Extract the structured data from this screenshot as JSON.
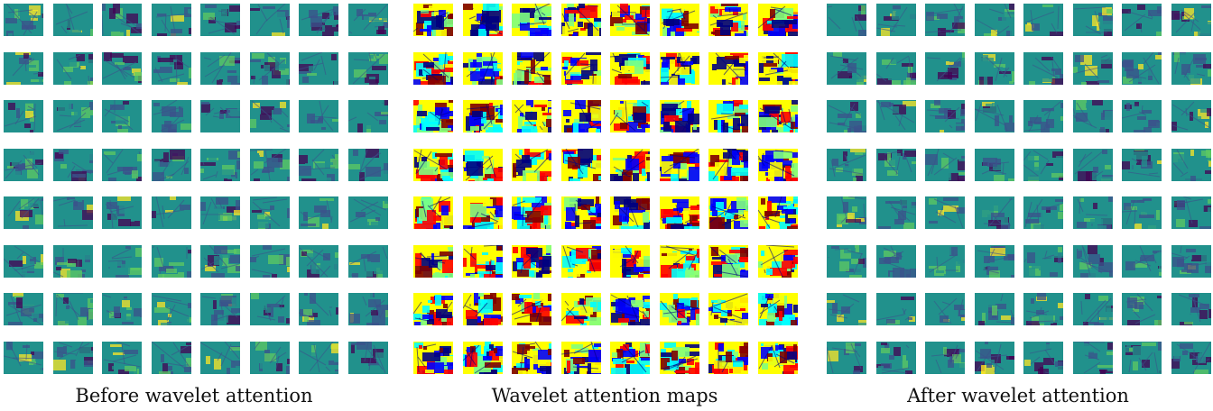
{
  "figure": {
    "panels": [
      {
        "key": "before",
        "caption": "Before wavelet attention",
        "rows": 8,
        "cols": 8,
        "colormap": "viridis"
      },
      {
        "key": "maps",
        "caption": "Wavelet attention maps",
        "rows": 8,
        "cols": 8,
        "colormap": "jet"
      },
      {
        "key": "after",
        "caption": "After wavelet attention",
        "rows": 8,
        "cols": 8,
        "colormap": "viridis"
      }
    ]
  },
  "colors": {
    "background": "#ffffff",
    "viridis": [
      "#440154",
      "#3b528b",
      "#21918c",
      "#5ec962",
      "#fde725"
    ],
    "jet": [
      "#00007f",
      "#0000ff",
      "#00ffff",
      "#7fff7f",
      "#ffff00",
      "#ff0000",
      "#7f0000"
    ]
  }
}
